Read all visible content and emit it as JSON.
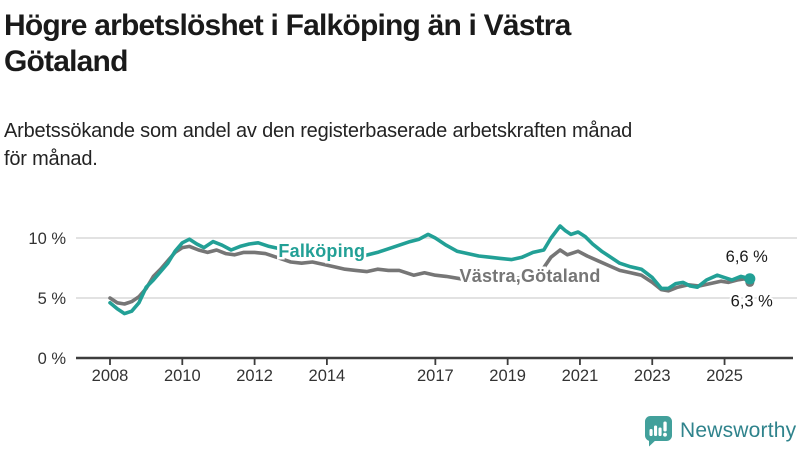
{
  "header": {
    "title_lines": [
      "Högre arbetslöshet i Falköping än i Västra",
      "Götaland"
    ],
    "subtitle_lines": [
      "Arbetssökande som andel av den registerbaserade arbetskraften månad",
      "för månad."
    ]
  },
  "chart_data": {
    "type": "line",
    "unit": "% av registerbaserad arbetskraft",
    "x_axis": {
      "ticks": [
        {
          "year": 2008,
          "label": "2008"
        },
        {
          "year": 2010,
          "label": "2010"
        },
        {
          "year": 2012,
          "label": "2012"
        },
        {
          "year": 2014,
          "label": "2014"
        },
        {
          "year": 2017,
          "label": "2017"
        },
        {
          "year": 2019,
          "label": "2019"
        },
        {
          "year": 2021,
          "label": "2021"
        },
        {
          "year": 2023,
          "label": "2023"
        },
        {
          "year": 2025,
          "label": "2025"
        }
      ],
      "range": [
        2008,
        2025.7
      ]
    },
    "y_axis": {
      "ticks": [
        {
          "value": 0,
          "label": "0 %"
        },
        {
          "value": 5,
          "label": "5 %"
        },
        {
          "value": 10,
          "label": "10 %"
        }
      ],
      "range": [
        0,
        11.5
      ],
      "grid": true
    },
    "series": [
      {
        "name": "Falköping",
        "color": "#22a096",
        "label_text": "Falköping",
        "label_at": {
          "year": 2013.86,
          "value": 8.9
        },
        "end_label": "6,6 %",
        "end_value": 6.6,
        "end_dot_radius": 5.5,
        "points": [
          [
            2008.0,
            4.6
          ],
          [
            2008.2,
            4.1
          ],
          [
            2008.4,
            3.7
          ],
          [
            2008.6,
            3.9
          ],
          [
            2008.8,
            4.6
          ],
          [
            2009.0,
            5.9
          ],
          [
            2009.2,
            6.5
          ],
          [
            2009.4,
            7.2
          ],
          [
            2009.6,
            7.9
          ],
          [
            2009.8,
            8.9
          ],
          [
            2010.0,
            9.6
          ],
          [
            2010.2,
            9.9
          ],
          [
            2010.4,
            9.5
          ],
          [
            2010.6,
            9.2
          ],
          [
            2010.85,
            9.7
          ],
          [
            2011.1,
            9.4
          ],
          [
            2011.35,
            9.0
          ],
          [
            2011.6,
            9.3
          ],
          [
            2011.85,
            9.5
          ],
          [
            2012.1,
            9.6
          ],
          [
            2012.4,
            9.3
          ],
          [
            2012.7,
            9.1
          ],
          [
            2013.0,
            8.9
          ],
          [
            2013.4,
            8.7
          ],
          [
            2013.8,
            8.6
          ],
          [
            2014.2,
            8.5
          ],
          [
            2014.6,
            8.4
          ],
          [
            2015.0,
            8.5
          ],
          [
            2015.4,
            8.8
          ],
          [
            2015.7,
            9.1
          ],
          [
            2016.0,
            9.4
          ],
          [
            2016.3,
            9.7
          ],
          [
            2016.55,
            9.9
          ],
          [
            2016.8,
            10.3
          ],
          [
            2017.0,
            10.0
          ],
          [
            2017.3,
            9.4
          ],
          [
            2017.6,
            8.9
          ],
          [
            2017.9,
            8.7
          ],
          [
            2018.2,
            8.5
          ],
          [
            2018.5,
            8.4
          ],
          [
            2018.8,
            8.3
          ],
          [
            2019.1,
            8.2
          ],
          [
            2019.4,
            8.4
          ],
          [
            2019.7,
            8.8
          ],
          [
            2020.0,
            9.0
          ],
          [
            2020.2,
            10.0
          ],
          [
            2020.45,
            11.0
          ],
          [
            2020.6,
            10.6
          ],
          [
            2020.75,
            10.3
          ],
          [
            2020.95,
            10.5
          ],
          [
            2021.15,
            10.1
          ],
          [
            2021.35,
            9.5
          ],
          [
            2021.6,
            8.9
          ],
          [
            2021.85,
            8.4
          ],
          [
            2022.1,
            7.9
          ],
          [
            2022.4,
            7.6
          ],
          [
            2022.7,
            7.4
          ],
          [
            2023.0,
            6.7
          ],
          [
            2023.25,
            5.8
          ],
          [
            2023.45,
            5.8
          ],
          [
            2023.65,
            6.2
          ],
          [
            2023.85,
            6.3
          ],
          [
            2024.05,
            6.0
          ],
          [
            2024.25,
            5.9
          ],
          [
            2024.5,
            6.5
          ],
          [
            2024.8,
            6.9
          ],
          [
            2025.0,
            6.7
          ],
          [
            2025.2,
            6.5
          ],
          [
            2025.45,
            6.8
          ],
          [
            2025.7,
            6.6
          ]
        ]
      },
      {
        "name": "Västra Götaland",
        "color": "#767676",
        "label_text": "Västra,Götaland",
        "label_at": {
          "year": 2019.62,
          "value": 6.85
        },
        "end_label": "6,3 %",
        "end_value": 6.3,
        "end_dot_radius": 4.5,
        "points": [
          [
            2008.0,
            5.0
          ],
          [
            2008.2,
            4.6
          ],
          [
            2008.4,
            4.5
          ],
          [
            2008.6,
            4.7
          ],
          [
            2008.8,
            5.1
          ],
          [
            2009.0,
            5.8
          ],
          [
            2009.2,
            6.8
          ],
          [
            2009.4,
            7.4
          ],
          [
            2009.6,
            8.1
          ],
          [
            2009.8,
            8.8
          ],
          [
            2010.0,
            9.2
          ],
          [
            2010.2,
            9.3
          ],
          [
            2010.45,
            9.0
          ],
          [
            2010.7,
            8.8
          ],
          [
            2010.95,
            9.0
          ],
          [
            2011.2,
            8.7
          ],
          [
            2011.45,
            8.6
          ],
          [
            2011.7,
            8.8
          ],
          [
            2012.0,
            8.8
          ],
          [
            2012.3,
            8.7
          ],
          [
            2012.6,
            8.4
          ],
          [
            2013.0,
            8.0
          ],
          [
            2013.3,
            7.9
          ],
          [
            2013.6,
            8.0
          ],
          [
            2013.9,
            7.8
          ],
          [
            2014.2,
            7.6
          ],
          [
            2014.5,
            7.4
          ],
          [
            2014.8,
            7.3
          ],
          [
            2015.1,
            7.2
          ],
          [
            2015.4,
            7.4
          ],
          [
            2015.7,
            7.3
          ],
          [
            2016.0,
            7.3
          ],
          [
            2016.4,
            6.9
          ],
          [
            2016.7,
            7.1
          ],
          [
            2017.0,
            6.9
          ],
          [
            2017.3,
            6.8
          ],
          [
            2017.7,
            6.6
          ],
          [
            2018.0,
            6.5
          ],
          [
            2018.5,
            6.4
          ],
          [
            2019.0,
            6.5
          ],
          [
            2019.5,
            6.8
          ],
          [
            2019.9,
            7.1
          ],
          [
            2020.2,
            8.4
          ],
          [
            2020.45,
            9.0
          ],
          [
            2020.65,
            8.6
          ],
          [
            2020.95,
            8.9
          ],
          [
            2021.2,
            8.5
          ],
          [
            2021.5,
            8.1
          ],
          [
            2021.8,
            7.7
          ],
          [
            2022.1,
            7.3
          ],
          [
            2022.4,
            7.1
          ],
          [
            2022.7,
            6.9
          ],
          [
            2023.0,
            6.3
          ],
          [
            2023.25,
            5.7
          ],
          [
            2023.45,
            5.6
          ],
          [
            2023.7,
            5.9
          ],
          [
            2024.0,
            6.1
          ],
          [
            2024.3,
            6.0
          ],
          [
            2024.6,
            6.2
          ],
          [
            2024.9,
            6.4
          ],
          [
            2025.1,
            6.3
          ],
          [
            2025.35,
            6.5
          ],
          [
            2025.55,
            6.6
          ],
          [
            2025.7,
            6.3
          ]
        ]
      }
    ]
  },
  "footer": {
    "brand": "Newsworthy"
  },
  "colors": {
    "accent_teal": "#22a096",
    "series_gray": "#767676",
    "grid": "#d9d9d9",
    "axis": "#3d3d3d",
    "axis_text": "#333333",
    "value_label_text": "#1a1a1a",
    "logo_icon": "#42a09b",
    "logo_text": "#2f838c"
  }
}
